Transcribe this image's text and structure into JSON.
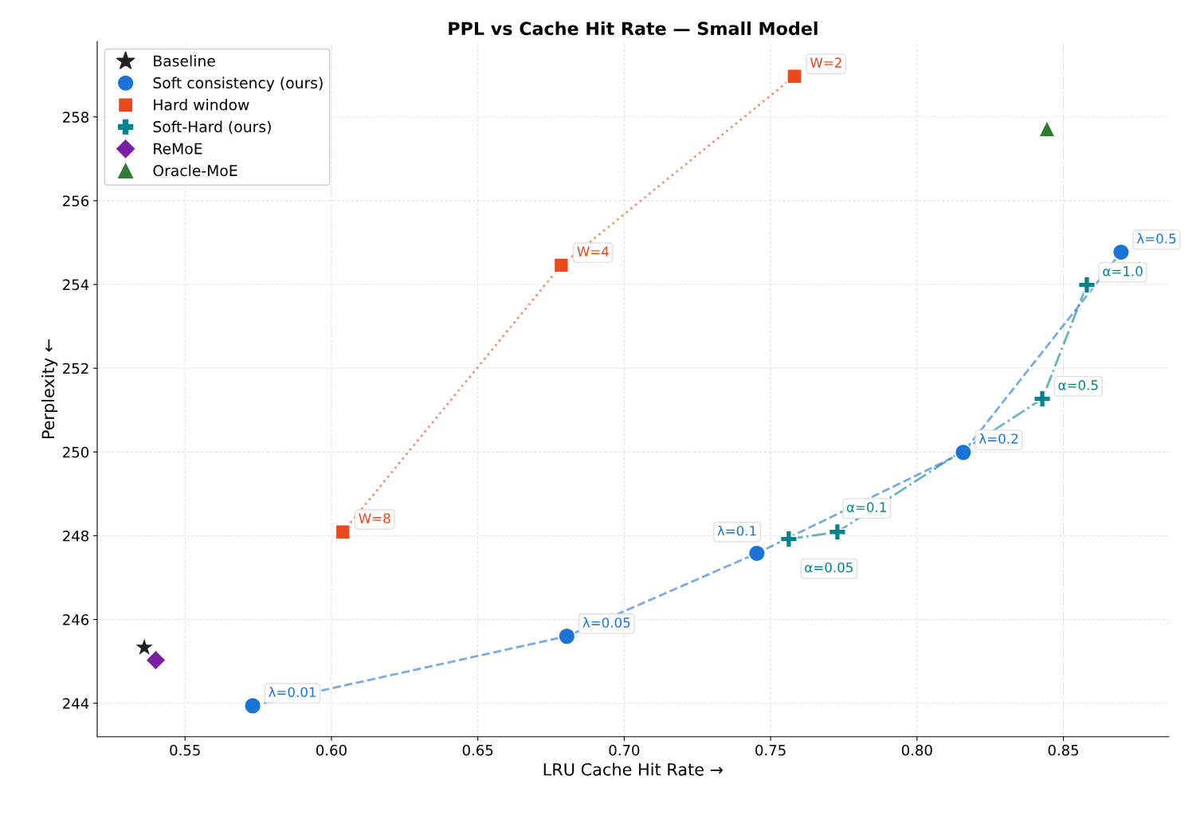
{
  "chart_data": {
    "type": "scatter",
    "title": "PPL vs Cache Hit Rate — Small Model",
    "xlabel": "LRU Cache Hit Rate →",
    "ylabel": "Perplexity ←",
    "xlim": [
      0.52,
      0.886
    ],
    "ylim": [
      243.2,
      259.8
    ],
    "xticks": [
      {
        "value": 0.55,
        "label": "0.55"
      },
      {
        "value": 0.6,
        "label": "0.60"
      },
      {
        "value": 0.65,
        "label": "0.65"
      },
      {
        "value": 0.7,
        "label": "0.70"
      },
      {
        "value": 0.75,
        "label": "0.75"
      },
      {
        "value": 0.8,
        "label": "0.80"
      },
      {
        "value": 0.85,
        "label": "0.85"
      }
    ],
    "yticks": [
      244,
      246,
      248,
      250,
      252,
      254,
      256,
      258
    ],
    "grid": true,
    "legend": "top left",
    "series": [
      {
        "name": "Baseline",
        "type": "scatter",
        "marker": "star",
        "color": "#212121",
        "x": [
          0.5361
        ],
        "values": [
          245.33
        ]
      },
      {
        "name": "Soft consistency (ours)",
        "type": "line",
        "marker": "circle",
        "line_style": "dashed",
        "color": "#1a73d6",
        "x": [
          0.5731,
          0.6804,
          0.7453,
          0.8158,
          0.8697
        ],
        "values": [
          243.94,
          245.6,
          247.58,
          249.99,
          254.77
        ]
      },
      {
        "name": "Hard window",
        "type": "line",
        "marker": "square",
        "line_style": "dotted",
        "color": "#e8491d",
        "x": [
          0.6039,
          0.6785,
          0.7581
        ],
        "values": [
          248.09,
          254.46,
          258.97
        ]
      },
      {
        "name": "Soft-Hard (ours)",
        "type": "line",
        "marker": "cross",
        "line_style": "dashdot",
        "color": "#00838f",
        "x": [
          0.7562,
          0.7728,
          0.8428,
          0.858
        ],
        "values": [
          247.92,
          248.09,
          251.27,
          253.99
        ]
      },
      {
        "name": "ReMoE",
        "type": "scatter",
        "marker": "diamond",
        "color": "#7b1fa2",
        "x": [
          0.54
        ],
        "values": [
          245.03
        ]
      },
      {
        "name": "Oracle-MoE",
        "type": "scatter",
        "marker": "triangle",
        "color": "#2e7d32",
        "x": [
          0.8444
        ],
        "values": [
          257.72
        ]
      }
    ],
    "annotations": [
      {
        "text": "λ=0.01",
        "x": 0.5731,
        "y": 243.94
      },
      {
        "text": "λ=0.05",
        "x": 0.6804,
        "y": 245.6
      },
      {
        "text": "λ=0.1",
        "x": 0.7453,
        "y": 247.58
      },
      {
        "text": "λ=0.2",
        "x": 0.8158,
        "y": 249.99
      },
      {
        "text": "λ=0.5",
        "x": 0.8697,
        "y": 254.77
      },
      {
        "text": "W=8",
        "x": 0.6039,
        "y": 248.09
      },
      {
        "text": "W=4",
        "x": 0.6785,
        "y": 254.46
      },
      {
        "text": "W=2",
        "x": 0.7581,
        "y": 258.97
      },
      {
        "text": "α=0.05",
        "x": 0.7562,
        "y": 247.92
      },
      {
        "text": "α=0.1",
        "x": 0.7728,
        "y": 248.09
      },
      {
        "text": "α=0.5",
        "x": 0.8428,
        "y": 251.27
      },
      {
        "text": "α=1.0",
        "x": 0.858,
        "y": 253.99
      }
    ]
  }
}
